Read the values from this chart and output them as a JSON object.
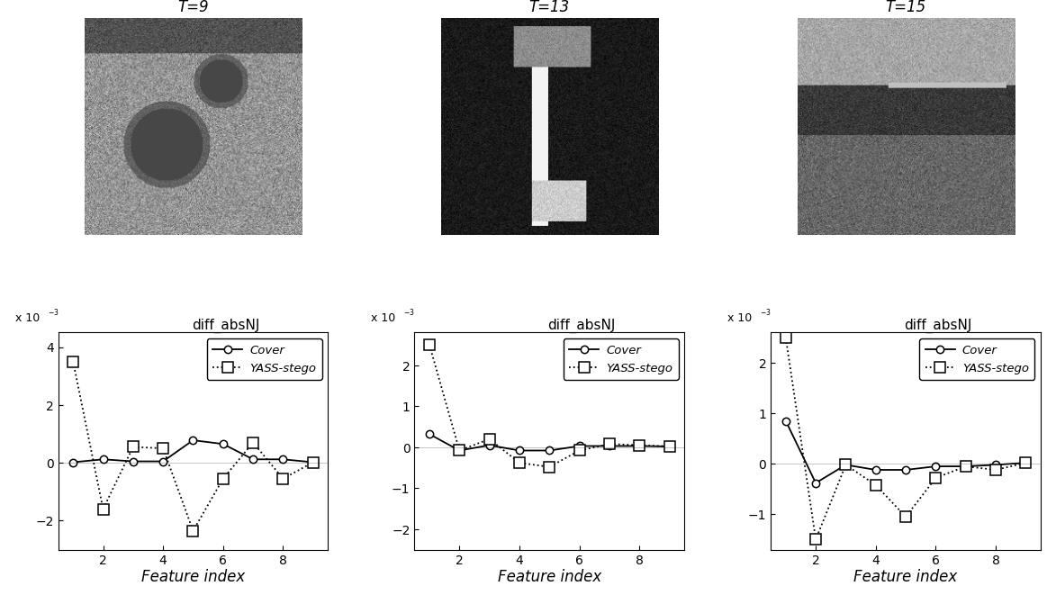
{
  "subplots": [
    {
      "T_label": "T=9",
      "plot_title": "diff_absNJ",
      "ylim": [
        -3.0,
        4.5
      ],
      "yticks": [
        -2,
        0,
        2,
        4
      ],
      "cover_y": [
        0.02,
        0.12,
        0.05,
        0.05,
        0.78,
        0.65,
        0.12,
        0.12,
        0.02
      ],
      "stego_y": [
        3.5,
        -1.6,
        0.55,
        0.5,
        -2.35,
        -0.55,
        0.7,
        -0.55,
        0.02
      ]
    },
    {
      "T_label": "T=13",
      "plot_title": "diff_absNJ",
      "ylim": [
        -2.5,
        2.8
      ],
      "yticks": [
        -2,
        -1,
        0,
        1,
        2
      ],
      "cover_y": [
        0.32,
        -0.08,
        0.05,
        -0.08,
        -0.08,
        0.03,
        0.03,
        0.03,
        0.02
      ],
      "stego_y": [
        2.5,
        -0.08,
        0.2,
        -0.38,
        -0.48,
        -0.08,
        0.08,
        0.05,
        0.02
      ]
    },
    {
      "T_label": "T=15",
      "plot_title": "diff_absNJ",
      "ylim": [
        -1.7,
        2.6
      ],
      "yticks": [
        -1,
        0,
        1,
        2
      ],
      "cover_y": [
        0.85,
        -0.38,
        -0.02,
        -0.12,
        -0.12,
        -0.05,
        -0.05,
        -0.02,
        0.02
      ],
      "stego_y": [
        2.5,
        -1.5,
        -0.02,
        -0.42,
        -1.05,
        -0.28,
        -0.05,
        -0.12,
        0.02
      ]
    }
  ],
  "x_indices": [
    1,
    2,
    3,
    4,
    5,
    6,
    7,
    8,
    9
  ],
  "xlim": [
    0.5,
    9.5
  ],
  "xticks": [
    2,
    4,
    6,
    8
  ],
  "xlabel": "Feature index",
  "cover_label": "Cover",
  "stego_label": "YASS-stego",
  "background": "#ffffff",
  "font_size": 12,
  "title_fontsize": 11
}
